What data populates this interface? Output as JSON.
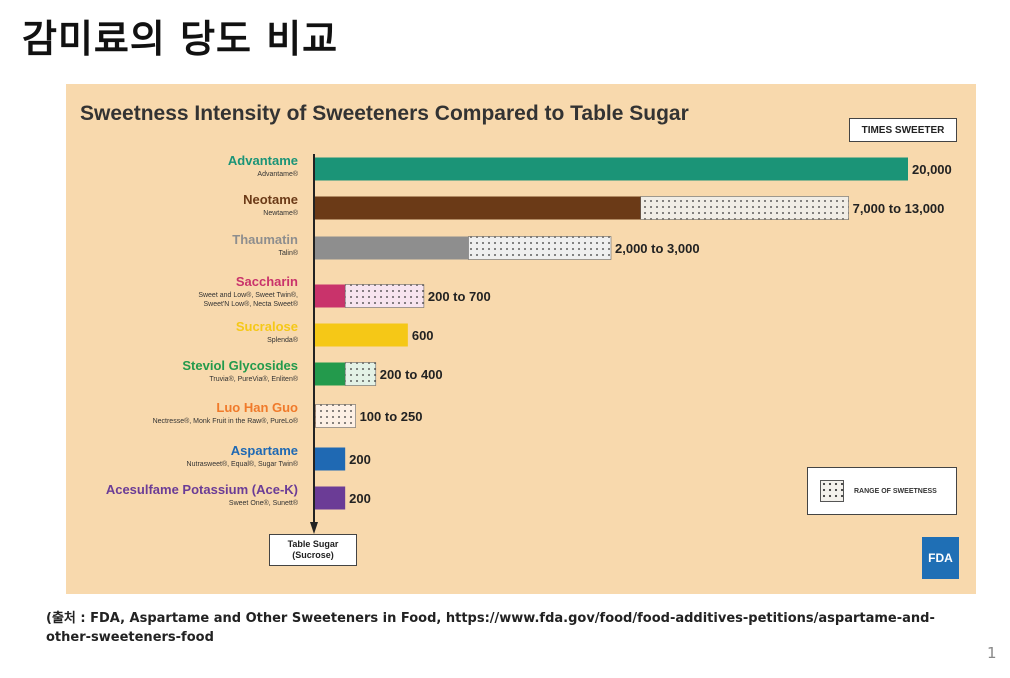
{
  "slide": {
    "title": "감미료의 당도 비교",
    "source_line1": "(출처 : FDA, Aspartame and Other Sweeteners in Food, https://www.fda.gov/food/food-additives-petitions/aspartame-and-",
    "source_line2": "other-sweeteners-food",
    "page_number": "1"
  },
  "fda_logo_text": "FDA",
  "chart_data": {
    "type": "bar",
    "orientation": "horizontal",
    "title": "Sweetness Intensity of Sweeteners Compared to Table Sugar",
    "unit_label": "TIMES SWEETER",
    "baseline_label_line1": "Table Sugar",
    "baseline_label_line2": "(Sucrose)",
    "legend": {
      "range_label": "RANGE OF SWEETNESS"
    },
    "colors": {
      "background": "#f8d9ad",
      "range_fill": "#f1efea"
    },
    "items": [
      {
        "name": "Advantame",
        "brands": [
          "Advantame®"
        ],
        "color": "#1b9477",
        "min": 20000,
        "max": 20000,
        "value_label": "20,000",
        "range_color": "#e8f2ee"
      },
      {
        "name": "Neotame",
        "brands": [
          "Newtame®"
        ],
        "color": "#6b3a17",
        "min": 7000,
        "max": 13000,
        "value_label": "7,000 to 13,000",
        "range_color": "#f1ede6"
      },
      {
        "name": "Thaumatin",
        "brands": [
          "Talin®"
        ],
        "color": "#8e8e8e",
        "min": 2000,
        "max": 3000,
        "value_label": "2,000 to 3,000",
        "range_color": "#efefef"
      },
      {
        "name": "Saccharin",
        "brands": [
          "Sweet and Low®, Sweet Twin®,",
          "Sweet'N Low®, Necta Sweet®"
        ],
        "color": "#c9336b",
        "min": 200,
        "max": 700,
        "value_label": "200 to 700",
        "range_color": "#f7e4ef"
      },
      {
        "name": "Sucralose",
        "brands": [
          "Splenda®"
        ],
        "color": "#f5c817",
        "min": 600,
        "max": 600,
        "value_label": "600",
        "range_color": "#fff6d6"
      },
      {
        "name": "Steviol Glycosides",
        "brands": [
          "Truvia®, PureVia®, Enliten®"
        ],
        "color": "#239a4c",
        "min": 200,
        "max": 400,
        "value_label": "200 to 400",
        "range_color": "#e3f2e6"
      },
      {
        "name": "Luo Han Guo",
        "brands": [
          "Nectresse®, Monk Fruit in the Raw®, PureLo®"
        ],
        "color": "#f07a2a",
        "min": 100,
        "max": 250,
        "value_label": "100 to 250",
        "range_color": "#fdf0e5"
      },
      {
        "name": "Aspartame",
        "brands": [
          "Nutrasweet®, Equal®, Sugar Twin®"
        ],
        "color": "#1f69b3",
        "min": 200,
        "max": 200,
        "value_label": "200",
        "range_color": "#e6eef8"
      },
      {
        "name": "Acesulfame Potassium (Ace-K)",
        "brands": [
          "Sweet One®, Sunett®"
        ],
        "color": "#6b3c96",
        "min": 200,
        "max": 200,
        "value_label": "200",
        "range_color": "#eee6f4"
      }
    ]
  }
}
